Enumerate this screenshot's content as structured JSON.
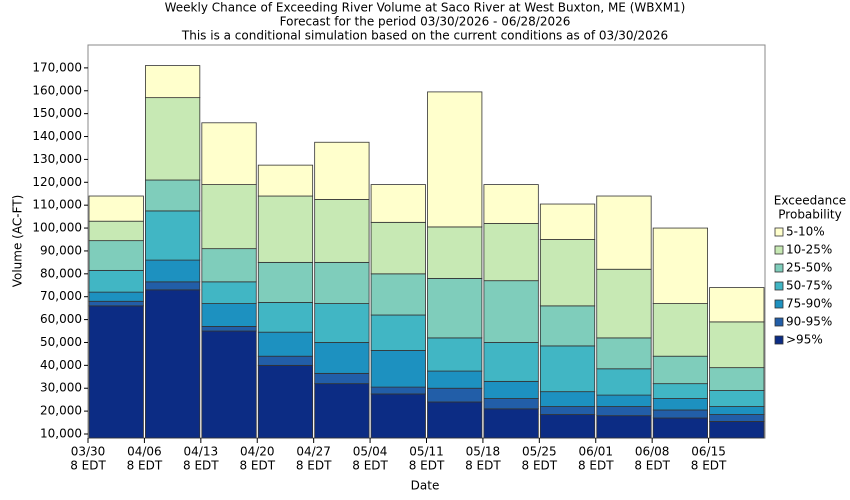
{
  "chart_data": {
    "type": "stacked_bar",
    "title": "Weekly Chance of Exceeding River Volume at Saco River at West Buxton, ME (WBXM1)",
    "subtitle": "Forecast for the period 03/30/2026 - 06/28/2026",
    "subtitle2": "This is a conditional simulation based on the current conditions as of 03/30/2026",
    "x_label": "Date",
    "y_label": "Volume (AC-FT)",
    "legend_title": [
      "Exceedance",
      "Probability"
    ],
    "legend_position": "right",
    "categories": [
      [
        "03/30",
        "8 EDT"
      ],
      [
        "04/06",
        "8 EDT"
      ],
      [
        "04/13",
        "8 EDT"
      ],
      [
        "04/20",
        "8 EDT"
      ],
      [
        "04/27",
        "8 EDT"
      ],
      [
        "05/04",
        "8 EDT"
      ],
      [
        "05/11",
        "8 EDT"
      ],
      [
        "05/18",
        "8 EDT"
      ],
      [
        "05/25",
        "8 EDT"
      ],
      [
        "06/01",
        "8 EDT"
      ],
      [
        "06/08",
        "8 EDT"
      ],
      [
        "06/15",
        "8 EDT"
      ]
    ],
    "series": [
      {
        "name": "5-10%",
        "color": "#ffffcc",
        "values": [
          11000,
          14000,
          27000,
          13500,
          25000,
          16500,
          59000,
          17000,
          15500,
          32000,
          33000,
          15000
        ]
      },
      {
        "name": "10-25%",
        "color": "#c7e9b4",
        "values": [
          8500,
          36000,
          28000,
          29000,
          27500,
          22500,
          22500,
          25000,
          29000,
          30000,
          23000,
          20000
        ]
      },
      {
        "name": "25-50%",
        "color": "#7fcdbb",
        "values": [
          13000,
          13500,
          14500,
          17500,
          18000,
          18000,
          26000,
          27000,
          17500,
          13500,
          12000,
          10000
        ]
      },
      {
        "name": "50-75%",
        "color": "#41b6c4",
        "values": [
          9500,
          21500,
          9500,
          13000,
          17000,
          15500,
          14500,
          17000,
          20000,
          11500,
          6500,
          7000
        ]
      },
      {
        "name": "75-90%",
        "color": "#1d91c0",
        "values": [
          4000,
          9500,
          10000,
          10500,
          13500,
          16000,
          7500,
          7500,
          6500,
          5000,
          5000,
          3500
        ]
      },
      {
        "name": "90-95%",
        "color": "#225ea8",
        "values": [
          2000,
          3500,
          2000,
          4000,
          4500,
          3000,
          6000,
          4500,
          3500,
          4000,
          3500,
          3000
        ]
      },
      {
        "name": ">95%",
        "color": "#0c2c84",
        "values": [
          66000,
          73000,
          55000,
          40000,
          32000,
          27500,
          24000,
          21000,
          18500,
          18000,
          17000,
          15500
        ]
      }
    ],
    "ylim": [
      8250,
      180000
    ],
    "yticks": [
      {
        "value": 10000,
        "label": "10,000"
      },
      {
        "value": 20000,
        "label": "20,000"
      },
      {
        "value": 30000,
        "label": "30,000"
      },
      {
        "value": 40000,
        "label": "40,000"
      },
      {
        "value": 50000,
        "label": "50,000"
      },
      {
        "value": 60000,
        "label": "60,000"
      },
      {
        "value": 70000,
        "label": "70,000"
      },
      {
        "value": 80000,
        "label": "80,000"
      },
      {
        "value": 90000,
        "label": "90,000"
      },
      {
        "value": 100000,
        "label": "100,000"
      },
      {
        "value": 110000,
        "label": "110,000"
      },
      {
        "value": 120000,
        "label": "120,000"
      },
      {
        "value": 130000,
        "label": "130,000"
      },
      {
        "value": 140000,
        "label": "140,000"
      },
      {
        "value": 150000,
        "label": "150,000"
      },
      {
        "value": 160000,
        "label": "160,000"
      },
      {
        "value": 170000,
        "label": "170,000"
      }
    ],
    "grid": false
  }
}
